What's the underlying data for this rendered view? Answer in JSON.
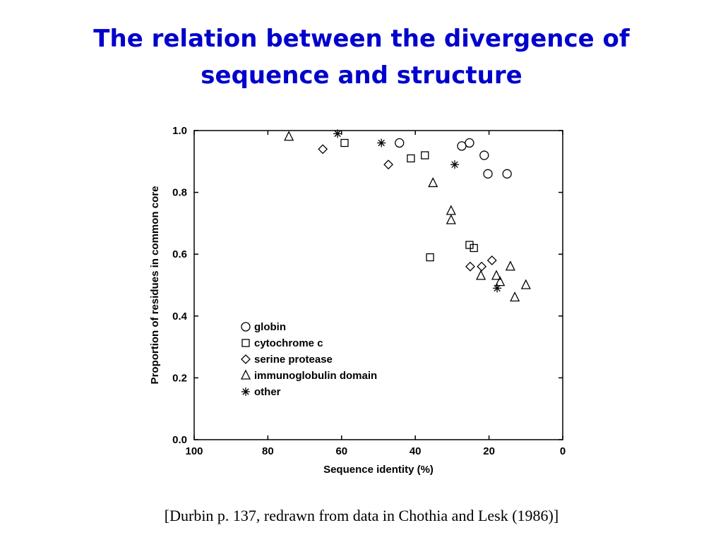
{
  "chart_data": {
    "type": "scatter",
    "title": "The relation between the divergence of sequence and structure",
    "caption": "[Durbin p. 137, redrawn from data in Chothia and Lesk (1986)]",
    "x_label": "Sequence identity (%)",
    "y_label": "Proportion of residues in common core",
    "xlim": [
      100,
      0
    ],
    "xticks": [
      100,
      80,
      60,
      40,
      20,
      0
    ],
    "ylim": [
      0,
      1
    ],
    "yticks": [
      {
        "value": 0,
        "label": "0.0"
      },
      0.2,
      0.4,
      0.6,
      0.8,
      {
        "value": 1,
        "label": "1.0"
      }
    ],
    "legend": "lower left",
    "series": [
      {
        "name": "globin",
        "color": "#000000",
        "marker": "circle",
        "x": [
          44.3,
          27.4,
          25.3,
          21.3,
          20.3,
          15.1
        ],
        "values": [
          0.96,
          0.95,
          0.96,
          0.92,
          0.86,
          0.86
        ]
      },
      {
        "name": "cytochrome c",
        "color": "#000000",
        "marker": "square",
        "x": [
          59.2,
          41.2,
          37.4,
          36.0,
          25.3,
          24.1
        ],
        "values": [
          0.96,
          0.91,
          0.92,
          0.59,
          0.63,
          0.62
        ]
      },
      {
        "name": "serine protease",
        "color": "#000000",
        "marker": "diamond",
        "x": [
          65.1,
          47.3,
          25.1,
          22.0,
          19.2
        ],
        "values": [
          0.94,
          0.89,
          0.56,
          0.56,
          0.58
        ]
      },
      {
        "name": "immunoglobulin domain",
        "color": "#000000",
        "marker": "triangle",
        "x": [
          74.3,
          35.2,
          30.3,
          30.3,
          22.2,
          18.0,
          17.0,
          14.2,
          13.0,
          10.0
        ],
        "values": [
          0.98,
          0.83,
          0.74,
          0.71,
          0.53,
          0.53,
          0.51,
          0.56,
          0.46,
          0.5
        ]
      },
      {
        "name": "other",
        "color": "#000000",
        "marker": "star",
        "x": [
          61.1,
          49.2,
          29.3,
          17.8
        ],
        "values": [
          0.99,
          0.96,
          0.89,
          0.49
        ]
      }
    ]
  }
}
